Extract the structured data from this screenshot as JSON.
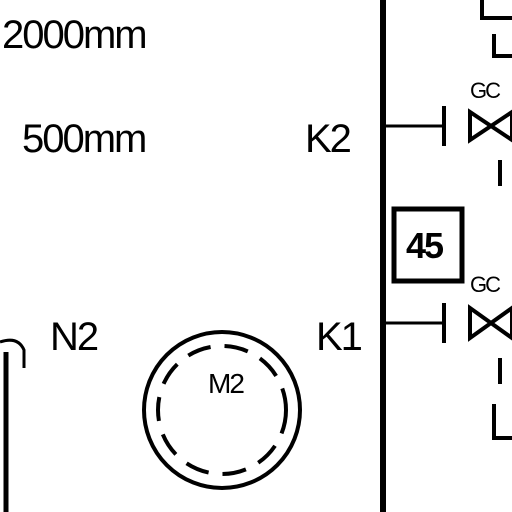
{
  "labels": {
    "dim_2000": "2000mm",
    "dim_500": "500mm",
    "k2": "K2",
    "k1": "K1",
    "n2": "N2",
    "m2": "M2",
    "box_45": "45",
    "gc_top": "GC",
    "gc_bottom": "GC"
  },
  "colors": {
    "ink": "#000000",
    "background": "#ffffff"
  }
}
